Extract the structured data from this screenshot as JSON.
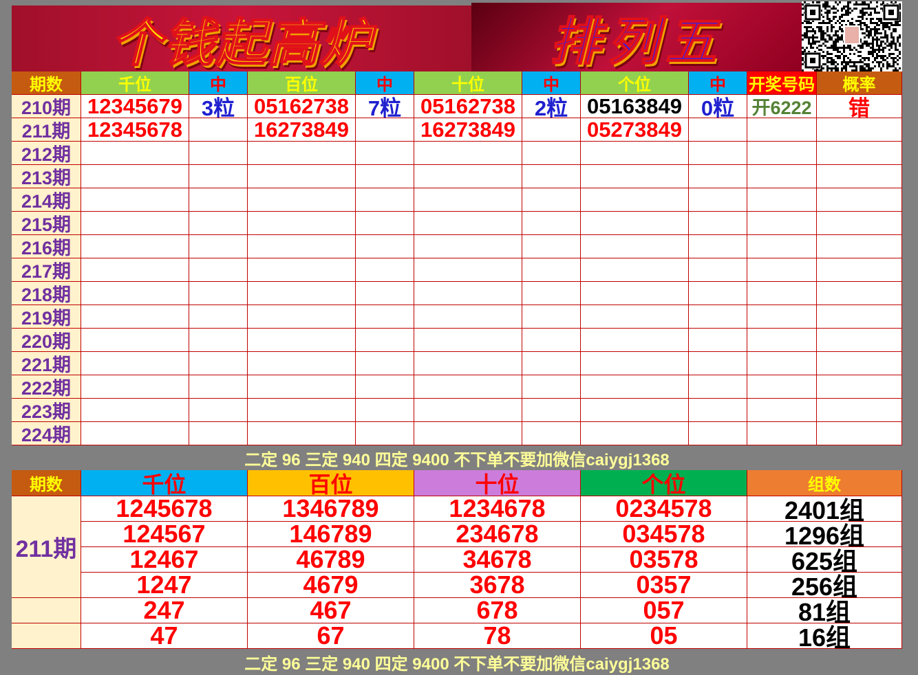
{
  "banner": {
    "title_left": "个钱起高炉",
    "title_right": "排列五",
    "qr_label": "qr-code"
  },
  "colors": {
    "header_orange": "#c55a11",
    "header_green": "#92d050",
    "header_blue": "#00b0f0",
    "header_red": "#ff0000",
    "yellow_text": "#ffff00",
    "period_bg": "#fff2cc",
    "period_text": "#7030a0",
    "hit_blue": "#1f1fcf",
    "draw_green": "#548235"
  },
  "top_table": {
    "headers": [
      "期数",
      "千位",
      "中",
      "百位",
      "中",
      "十位",
      "中",
      "个位",
      "中",
      "开奖号码",
      "概率"
    ],
    "rows": [
      [
        "210期",
        "12345679",
        "3粒",
        "05162738",
        "7粒",
        "05162738",
        "2粒",
        "05163849",
        "0粒",
        "开6222",
        "错"
      ],
      [
        "211期",
        "12345678",
        "",
        "16273849",
        "",
        "16273849",
        "",
        "05273849",
        "",
        "",
        ""
      ],
      [
        "212期"
      ],
      [
        "213期"
      ],
      [
        "214期"
      ],
      [
        "215期"
      ],
      [
        "216期"
      ],
      [
        "217期"
      ],
      [
        "218期"
      ],
      [
        "219期"
      ],
      [
        "220期"
      ],
      [
        "221期"
      ],
      [
        "222期"
      ],
      [
        "223期"
      ],
      [
        "224期"
      ]
    ]
  },
  "note": "二定 96 三定 940 四定 9400 不下单不要加微信caiygj1368",
  "bottom_table": {
    "headers": [
      "期数",
      "千位",
      "百位",
      "十位",
      "个位",
      "组数"
    ],
    "period": "211期",
    "rows": [
      [
        "1245678",
        "1346789",
        "1234678",
        "0234578",
        "2401组"
      ],
      [
        "124567",
        "146789",
        "234678",
        "034578",
        "1296组"
      ],
      [
        "12467",
        "46789",
        "34678",
        "03578",
        "625组"
      ],
      [
        "1247",
        "4679",
        "3678",
        "0357",
        "256组"
      ],
      [
        "247",
        "467",
        "678",
        "057",
        "81组"
      ],
      [
        "47",
        "67",
        "78",
        "05",
        "16组"
      ]
    ]
  }
}
